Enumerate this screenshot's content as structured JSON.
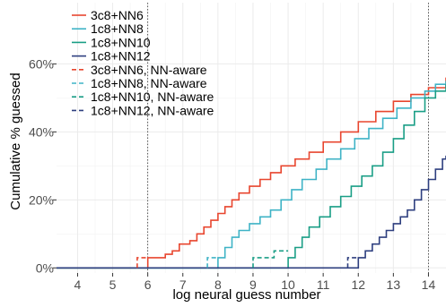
{
  "chart_data": {
    "type": "line",
    "step": true,
    "xlabel": "log neural guess number",
    "ylabel": "Cumulative % guessed",
    "xlim": [
      3.4,
      14.5
    ],
    "ylim": [
      -1.5,
      78
    ],
    "x_ticks": [
      4,
      5,
      6,
      7,
      8,
      9,
      10,
      11,
      12,
      13,
      14
    ],
    "x_tick_labels": [
      "4",
      "5",
      "6",
      "7",
      "8",
      "9",
      "10",
      "11",
      "12",
      "13",
      "14"
    ],
    "y_ticks": [
      0,
      20,
      40,
      60
    ],
    "y_tick_labels": [
      "0%",
      "20%",
      "40%",
      "60%"
    ],
    "grid": true,
    "legend_position": "top-left",
    "reference_lines_x": [
      6,
      14
    ],
    "series": [
      {
        "name": "3c8+NN6",
        "color": "#e8462f",
        "dash": "solid",
        "points": [
          [
            3.4,
            0
          ],
          [
            6.0,
            0
          ],
          [
            6.0,
            3
          ],
          [
            6.3,
            3
          ],
          [
            6.5,
            4
          ],
          [
            6.7,
            5
          ],
          [
            6.9,
            7
          ],
          [
            7.2,
            8
          ],
          [
            7.4,
            10
          ],
          [
            7.6,
            12
          ],
          [
            7.8,
            14
          ],
          [
            8.0,
            16
          ],
          [
            8.2,
            18
          ],
          [
            8.4,
            20
          ],
          [
            8.6,
            22
          ],
          [
            8.9,
            24
          ],
          [
            9.2,
            26
          ],
          [
            9.5,
            28
          ],
          [
            9.8,
            30
          ],
          [
            10.2,
            32
          ],
          [
            10.6,
            34
          ],
          [
            11.0,
            37
          ],
          [
            11.5,
            40
          ],
          [
            12.0,
            43
          ],
          [
            12.5,
            46
          ],
          [
            13.0,
            49
          ],
          [
            13.5,
            51
          ],
          [
            14.0,
            53
          ],
          [
            14.5,
            56
          ]
        ]
      },
      {
        "name": "1c8+NN8",
        "color": "#3fb3c6",
        "dash": "solid",
        "points": [
          [
            3.4,
            0
          ],
          [
            8.0,
            0
          ],
          [
            8.0,
            3
          ],
          [
            8.2,
            6
          ],
          [
            8.4,
            9
          ],
          [
            8.6,
            11
          ],
          [
            8.9,
            13
          ],
          [
            9.2,
            15
          ],
          [
            9.5,
            17
          ],
          [
            9.8,
            20
          ],
          [
            10.1,
            23
          ],
          [
            10.4,
            26
          ],
          [
            10.8,
            29
          ],
          [
            11.1,
            32
          ],
          [
            11.5,
            35
          ],
          [
            11.9,
            38
          ],
          [
            12.3,
            41
          ],
          [
            12.7,
            44
          ],
          [
            13.1,
            47
          ],
          [
            13.5,
            50
          ],
          [
            13.9,
            52
          ],
          [
            14.2,
            54
          ],
          [
            14.5,
            55
          ]
        ]
      },
      {
        "name": "1c8+NN10",
        "color": "#1a9e86",
        "dash": "solid",
        "points": [
          [
            3.4,
            0
          ],
          [
            10.0,
            0
          ],
          [
            10.0,
            3
          ],
          [
            10.2,
            6
          ],
          [
            10.4,
            9
          ],
          [
            10.6,
            12
          ],
          [
            10.9,
            15
          ],
          [
            11.2,
            18
          ],
          [
            11.5,
            21
          ],
          [
            11.8,
            24
          ],
          [
            12.1,
            27
          ],
          [
            12.4,
            30
          ],
          [
            12.7,
            34
          ],
          [
            13.0,
            38
          ],
          [
            13.3,
            42
          ],
          [
            13.6,
            46
          ],
          [
            13.9,
            50
          ],
          [
            14.2,
            52
          ],
          [
            14.5,
            54
          ]
        ]
      },
      {
        "name": "1c8+NN12",
        "color": "#2e3f7f",
        "dash": "solid",
        "points": [
          [
            3.4,
            0
          ],
          [
            12.0,
            0
          ],
          [
            12.0,
            3
          ],
          [
            12.2,
            5
          ],
          [
            12.4,
            7
          ],
          [
            12.6,
            9
          ],
          [
            12.8,
            11
          ],
          [
            13.0,
            13
          ],
          [
            13.2,
            15
          ],
          [
            13.4,
            17
          ],
          [
            13.6,
            20
          ],
          [
            13.8,
            23
          ],
          [
            14.0,
            26
          ],
          [
            14.2,
            29
          ],
          [
            14.4,
            32
          ],
          [
            14.5,
            33
          ]
        ]
      },
      {
        "name": "3c8+NN6, NN-aware",
        "color": "#e8462f",
        "dash": "dashed",
        "points": [
          [
            5.7,
            0
          ],
          [
            5.7,
            3
          ],
          [
            6.0,
            3
          ]
        ]
      },
      {
        "name": "1c8+NN8, NN-aware",
        "color": "#3fb3c6",
        "dash": "dashed",
        "points": [
          [
            7.7,
            0
          ],
          [
            7.7,
            3
          ],
          [
            8.0,
            3
          ]
        ]
      },
      {
        "name": "1c8+NN10, NN-aware",
        "color": "#1a9e86",
        "dash": "dashed",
        "points": [
          [
            9.0,
            0
          ],
          [
            9.0,
            3
          ],
          [
            9.6,
            3
          ],
          [
            9.6,
            5
          ],
          [
            10.0,
            5
          ]
        ]
      },
      {
        "name": "1c8+NN12, NN-aware",
        "color": "#2e3f7f",
        "dash": "dashed",
        "points": [
          [
            11.7,
            0
          ],
          [
            11.7,
            3
          ],
          [
            12.0,
            3
          ]
        ]
      }
    ]
  }
}
